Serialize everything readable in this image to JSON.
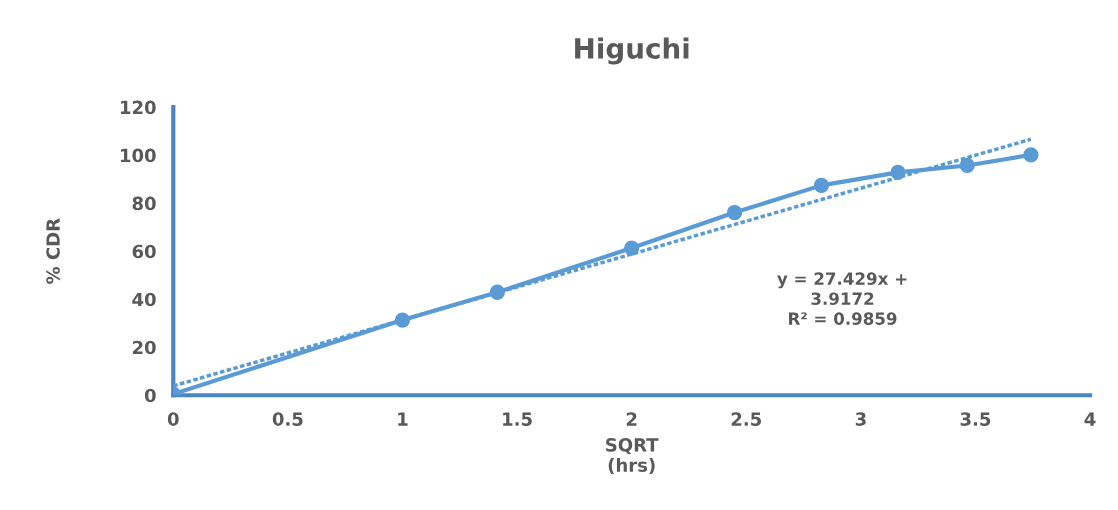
{
  "chart_data": {
    "type": "line",
    "title": "Higuchi",
    "xlabel": "SQRT\n(hrs)",
    "ylabel": "% CDR",
    "x": [
      0,
      1,
      1.414,
      2,
      2.449,
      2.828,
      3.162,
      3.464,
      3.742
    ],
    "series": [
      {
        "color": "#5b9bd5",
        "marker": "circle",
        "line_style": "solid",
        "values": [
          0.5,
          31.3,
          42.9,
          61.3,
          76.1,
          87.4,
          92.8,
          95.7,
          100.1
        ]
      },
      {
        "type": "line",
        "color": "#5b9bd5",
        "marker": "none",
        "line_style": "dotted",
        "x": [
          0,
          3.742
        ],
        "values": [
          3.9,
          106.6
        ]
      }
    ],
    "annotations": [
      "y = 27.429x +\n3.9172\nR² = 0.9859"
    ],
    "xlim": [
      0,
      4
    ],
    "xticks": [
      0,
      0.5,
      1,
      1.5,
      2,
      2.5,
      3,
      3.5,
      4
    ],
    "ylim": [
      0,
      120
    ],
    "yticks": [
      0,
      20,
      40,
      60,
      80,
      100,
      120
    ],
    "grid": false
  }
}
